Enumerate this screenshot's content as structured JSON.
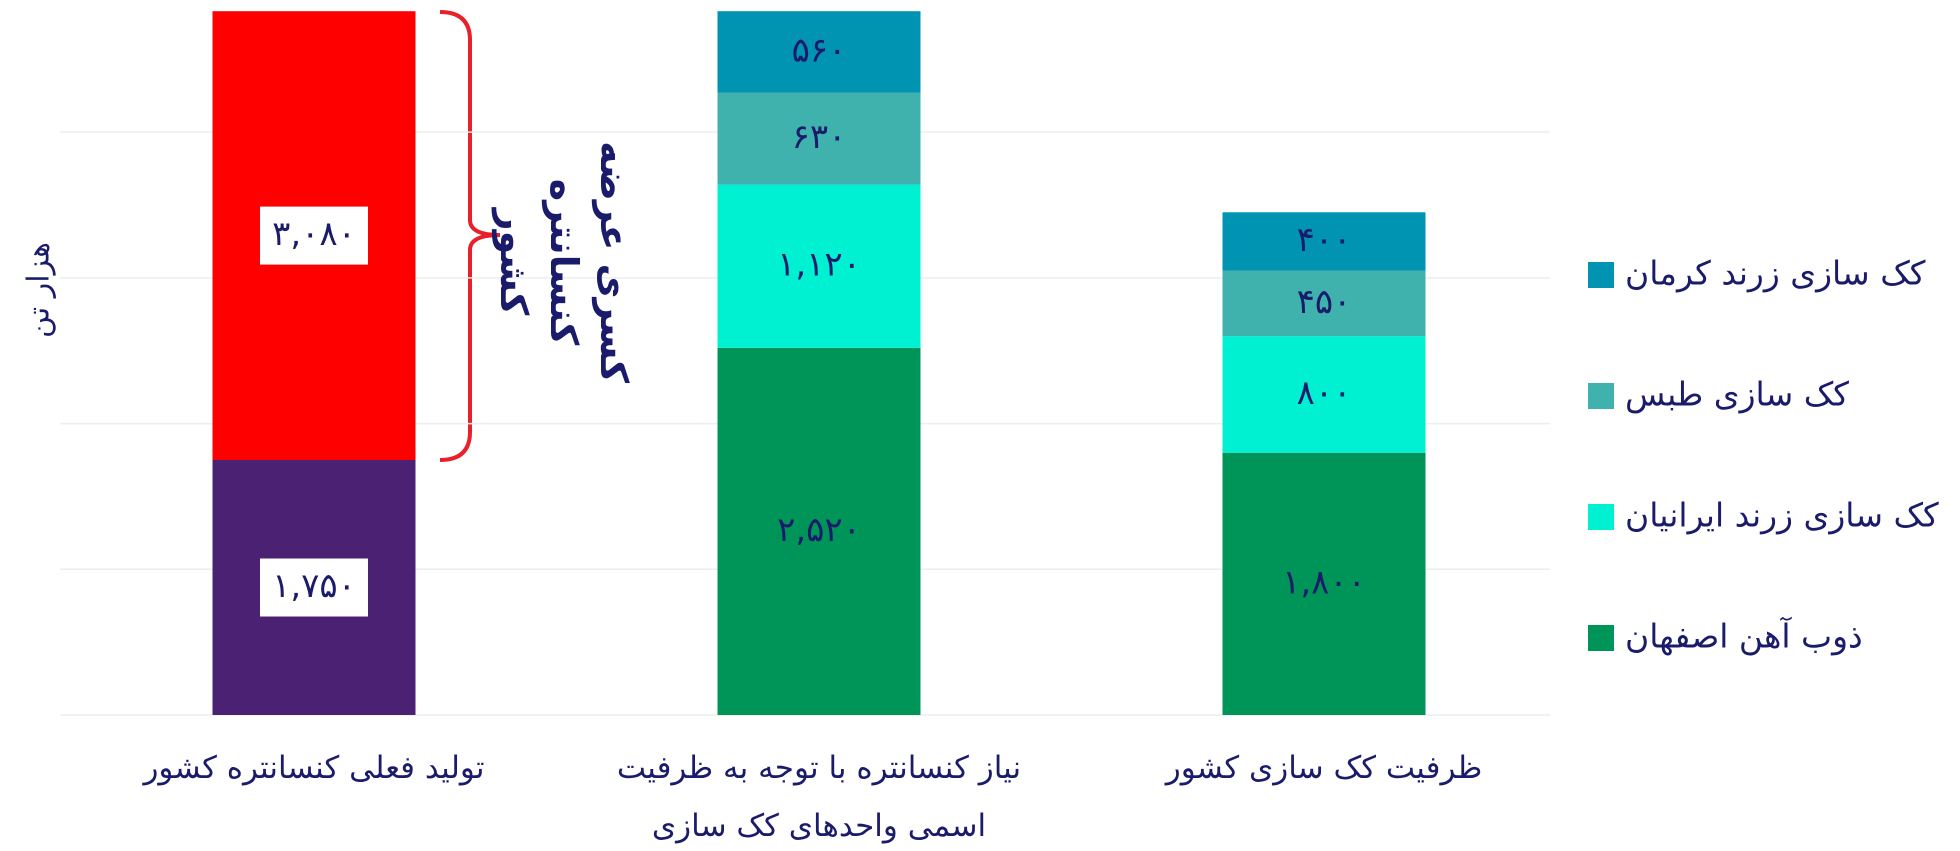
{
  "chart_data": {
    "type": "stacked_bar",
    "y_label": "هزار تن",
    "categories": [
      "تولید فعلی کنسانتره کشور",
      "نیاز کنسانتره با توجه به ظرفیت اسمی واحدهای کک سازی",
      "ظرفیت کک سازی کشور"
    ],
    "series": [
      {
        "name": "ذوب آهن اصفهان",
        "color": "#009558",
        "values": [
          null,
          2520,
          1800
        ],
        "value_labels": [
          null,
          "۲,۵۲۰",
          "۱,۸۰۰"
        ]
      },
      {
        "name": "کک سازی زرند ایرانیان",
        "color": "#00f0d2",
        "values": [
          null,
          1120,
          800
        ],
        "value_labels": [
          null,
          "۱,۱۲۰",
          "۸۰۰"
        ]
      },
      {
        "name": "کک سازی طبس",
        "color": "#3fb2ae",
        "values": [
          null,
          630,
          450
        ],
        "value_labels": [
          null,
          "۶۳۰",
          "۴۵۰"
        ]
      },
      {
        "name": "کک سازی زرند کرمان",
        "color": "#0093b2",
        "values": [
          null,
          560,
          400
        ],
        "value_labels": [
          null,
          "۵۶۰",
          "۴۰۰"
        ]
      },
      {
        "color": "#4b2273",
        "values": [
          1750,
          null,
          null
        ],
        "value_labels": [
          "۱,۷۵۰",
          null,
          null
        ]
      },
      {
        "color": "#ff0000",
        "values": [
          3080,
          null,
          null
        ],
        "value_labels": [
          "۳,۰۸۰",
          null,
          null
        ]
      }
    ],
    "annotation": "کسری عرضه کنسانتره کشور",
    "ylim": [
      0,
      4900
    ],
    "yticks": [
      0,
      1000,
      2000,
      3000,
      4000
    ],
    "grid": true
  }
}
